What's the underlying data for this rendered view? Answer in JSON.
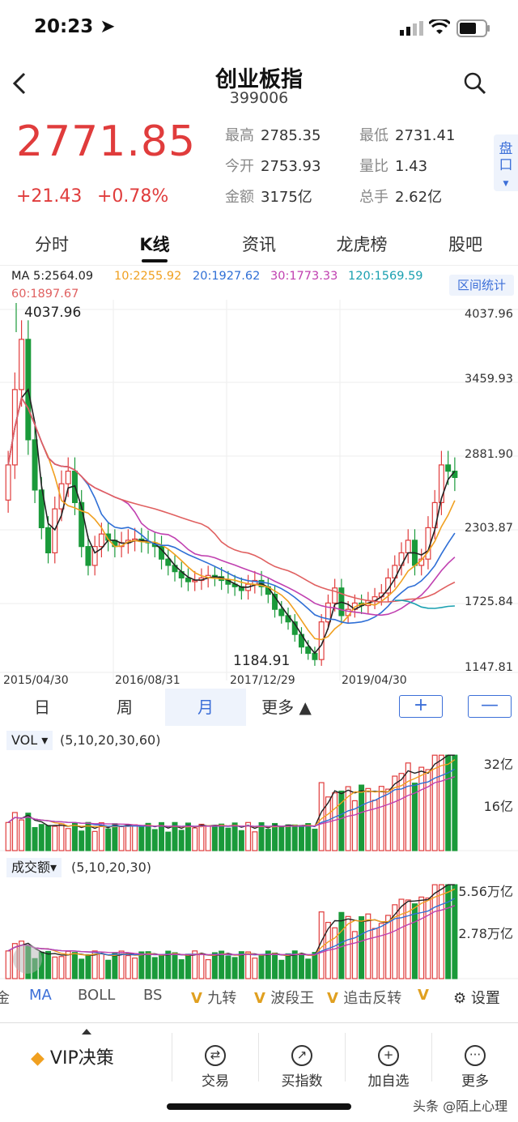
{
  "status_bar": {
    "time": "20:23 ➤"
  },
  "header": {
    "title": "创业板指",
    "code": "399006"
  },
  "quote": {
    "price": "2771.85",
    "change": "+21.43",
    "change_pct": "+0.78%",
    "stats": [
      {
        "label": "最高",
        "value": "2785.35"
      },
      {
        "label": "最低",
        "value": "2731.41"
      },
      {
        "label": "今开",
        "value": "2753.93"
      },
      {
        "label": "量比",
        "value": "1.43"
      },
      {
        "label": "金额",
        "value": "3175亿"
      },
      {
        "label": "总手",
        "value": "2.62亿"
      }
    ],
    "side_tab": "盘口"
  },
  "tabs": [
    "分时",
    "K线",
    "资讯",
    "龙虎榜",
    "股吧"
  ],
  "ma_legend": {
    "ma5": "MA 5:2564.09",
    "ma10": "10:2255.92",
    "ma20": "20:1927.62",
    "ma30": "30:1773.33",
    "ma120": "120:1569.59",
    "ma60": "60:1897.67",
    "range_btn": "区间统计"
  },
  "chart_data": {
    "type": "candlestick",
    "y_ticks": [
      "4037.96",
      "3459.93",
      "2881.90",
      "2303.87",
      "1725.84",
      "1147.81"
    ],
    "x_ticks": [
      "2015/04/30",
      "2016/08/31",
      "2017/12/29",
      "2019/04/30"
    ],
    "high_label": "4037.96",
    "low_label": "1184.91",
    "colors": {
      "up": "#e03c3c",
      "down": "#1a9a3a",
      "ma5": "#222222",
      "ma10": "#f0a020",
      "ma20": "#2f6fd6",
      "ma30": "#c040b0",
      "ma60": "#e06060",
      "ma120": "#1aa0b0"
    },
    "ylim": [
      1147.81,
      4037.96
    ],
    "candles_close": [
      2800,
      3400,
      3800,
      3000,
      2600,
      2300,
      2100,
      2450,
      2650,
      2750,
      2500,
      2150,
      2000,
      2150,
      2250,
      2200,
      2150,
      2180,
      2200,
      2210,
      2190,
      2180,
      2150,
      2050,
      2000,
      1950,
      1900,
      1870,
      1880,
      1900,
      1920,
      1910,
      1880,
      1850,
      1830,
      1800,
      1850,
      1880,
      1830,
      1770,
      1650,
      1600,
      1550,
      1450,
      1350,
      1300,
      1250,
      1550,
      1700,
      1820,
      1600,
      1650,
      1700,
      1680,
      1720,
      1750,
      1780,
      1900,
      2000,
      2100,
      2200,
      2000,
      2050,
      2300,
      2500,
      2800,
      2750,
      2700
    ]
  },
  "period_tabs": {
    "day": "日",
    "week": "周",
    "month": "月",
    "more": "更多 ▲",
    "zoom_in": "+",
    "zoom_out": "—"
  },
  "vol_panel": {
    "label": "VOL ▾",
    "params": "(5,10,20,30,60)",
    "ticks": [
      "32亿",
      "16亿"
    ]
  },
  "amt_panel": {
    "label": "成交额▾",
    "params": "(5,10,20,30)",
    "ticks": [
      "5.56万亿",
      "2.78万亿"
    ]
  },
  "indicators": [
    "金",
    "MA",
    "BOLL",
    "BS",
    "九转",
    "波段王",
    "追击反转",
    "设置"
  ],
  "bottom_bar": {
    "vip": "VIP决策",
    "items": [
      {
        "label": "交易",
        "icon": "⇄"
      },
      {
        "label": "买指数",
        "icon": "↗"
      },
      {
        "label": "加自选",
        "icon": "+"
      },
      {
        "label": "更多",
        "icon": "···"
      }
    ]
  },
  "watermark": "头条 @陌上心理"
}
